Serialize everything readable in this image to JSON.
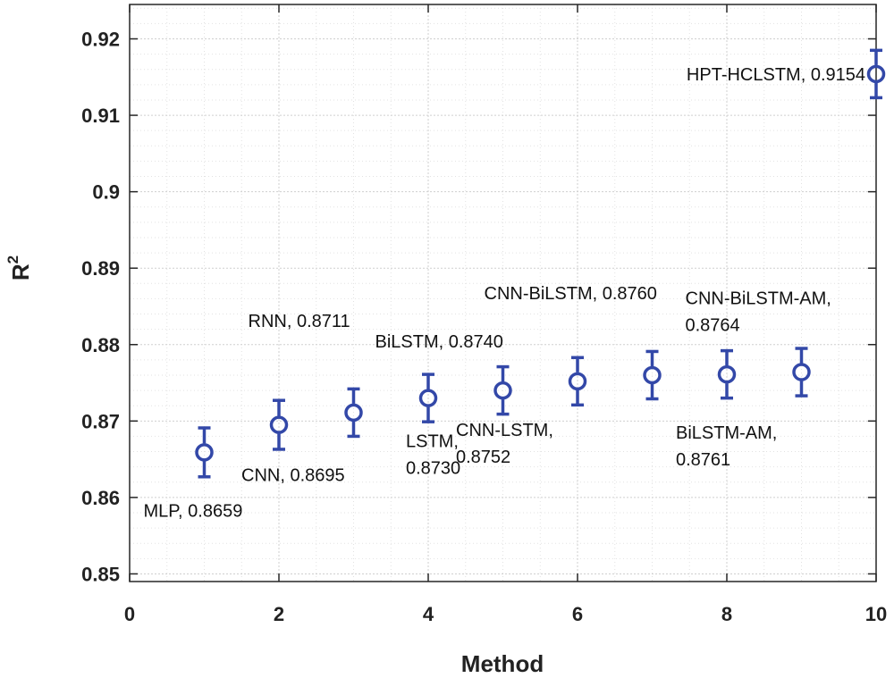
{
  "chart_data": {
    "type": "scatter",
    "title": "",
    "xlabel": "Method",
    "ylabel_base": "R",
    "ylabel_sup": "2",
    "xlim": [
      0,
      10
    ],
    "ylim": [
      0.849,
      0.9245
    ],
    "xticks": [
      0,
      2,
      4,
      6,
      8,
      10
    ],
    "xtick_labels": [
      "0",
      "2",
      "4",
      "6",
      "8",
      "10"
    ],
    "yticks": [
      0.85,
      0.86,
      0.87,
      0.88,
      0.89,
      0.9,
      0.91,
      0.92
    ],
    "ytick_labels": [
      "0.85",
      "0.86",
      "0.87",
      "0.88",
      "0.89",
      "0.9",
      "0.91",
      "0.92"
    ],
    "grid": true,
    "color": "#3348a8",
    "points": [
      {
        "x": 1,
        "y": 0.8659,
        "err": 0.0032,
        "label_lines": [
          "MLP, 0.8659"
        ]
      },
      {
        "x": 2,
        "y": 0.8695,
        "err": 0.0032,
        "label_lines": [
          "CNN, 0.8695"
        ]
      },
      {
        "x": 3,
        "y": 0.8711,
        "err": 0.0031,
        "label_lines": [
          "RNN, 0.8711"
        ]
      },
      {
        "x": 4,
        "y": 0.873,
        "err": 0.0031,
        "label_lines": [
          "LSTM,",
          "0.8730"
        ]
      },
      {
        "x": 5,
        "y": 0.874,
        "err": 0.0031,
        "label_lines": [
          "BiLSTM, 0.8740"
        ]
      },
      {
        "x": 6,
        "y": 0.8752,
        "err": 0.0031,
        "label_lines": [
          "CNN-LSTM,",
          "0.8752"
        ]
      },
      {
        "x": 7,
        "y": 0.876,
        "err": 0.0031,
        "label_lines": [
          "CNN-BiLSTM, 0.8760"
        ]
      },
      {
        "x": 8,
        "y": 0.8761,
        "err": 0.0031,
        "label_lines": [
          "BiLSTM-AM,",
          "0.8761"
        ]
      },
      {
        "x": 9,
        "y": 0.8764,
        "err": 0.0031,
        "label_lines": [
          "CNN-BiLSTM-AM,",
          "0.8764"
        ]
      },
      {
        "x": 10,
        "y": 0.9154,
        "err": 0.0031,
        "label_lines": [
          "HPT-HCLSTM, 0.9154"
        ]
      }
    ]
  }
}
